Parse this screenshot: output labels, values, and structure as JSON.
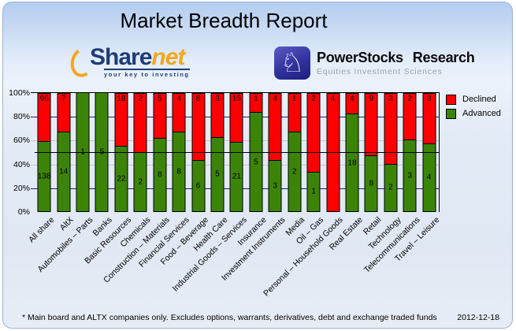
{
  "chart_data": {
    "type": "bar",
    "stacked": true,
    "stacking": "percent",
    "title": "Market Breadth Report",
    "categories": [
      "All share",
      "AltX",
      "Automobiles – Parts",
      "Banks",
      "Basic Resources",
      "Chemicals",
      "Construction – Materials",
      "Financial Services",
      "Food – Beverage",
      "Health Care",
      "Industrial Goods – Services",
      "Insurance",
      "Investment Instruments",
      "Media",
      "Oil – Gas",
      "Personal – Household Goods",
      "Real Estate",
      "Retail",
      "Technology",
      "Telecommunications",
      "Travel – Leisure"
    ],
    "series": [
      {
        "name": "Declined",
        "color": "#fe0000",
        "values": [
          96,
          7,
          0,
          0,
          18,
          2,
          5,
          4,
          8,
          3,
          15,
          1,
          4,
          1,
          2,
          4,
          4,
          9,
          3,
          2,
          3
        ]
      },
      {
        "name": "Advanced",
        "color": "#3c8408",
        "values": [
          138,
          14,
          1,
          5,
          22,
          2,
          8,
          8,
          6,
          5,
          21,
          5,
          3,
          2,
          1,
          0,
          18,
          8,
          2,
          3,
          4
        ]
      }
    ],
    "ylim": [
      0,
      100
    ],
    "y_ticks": [
      "0%",
      "20%",
      "40%",
      "60%",
      "80%",
      "100%"
    ],
    "gridlines": {
      "navy_pcts": [
        20,
        80
      ],
      "gray_pcts": [
        40,
        60
      ],
      "solid_black_pct": 50
    },
    "legend_position": "top-right",
    "grid": true
  },
  "logos": {
    "sharenet": {
      "name_part1": "Share",
      "name_part2": "net",
      "tagline": "your key to investing"
    },
    "powerstocks": {
      "knight_glyph": "♘",
      "word1": "PowerStocks",
      "word2": "Research",
      "subtitle": "Equities Investment Sciences"
    }
  },
  "footer": {
    "note": "* Main board and ALTX companies only. Excludes options, warrants, derivatives, debt and exchange traded funds",
    "date": "2012-12-18"
  }
}
